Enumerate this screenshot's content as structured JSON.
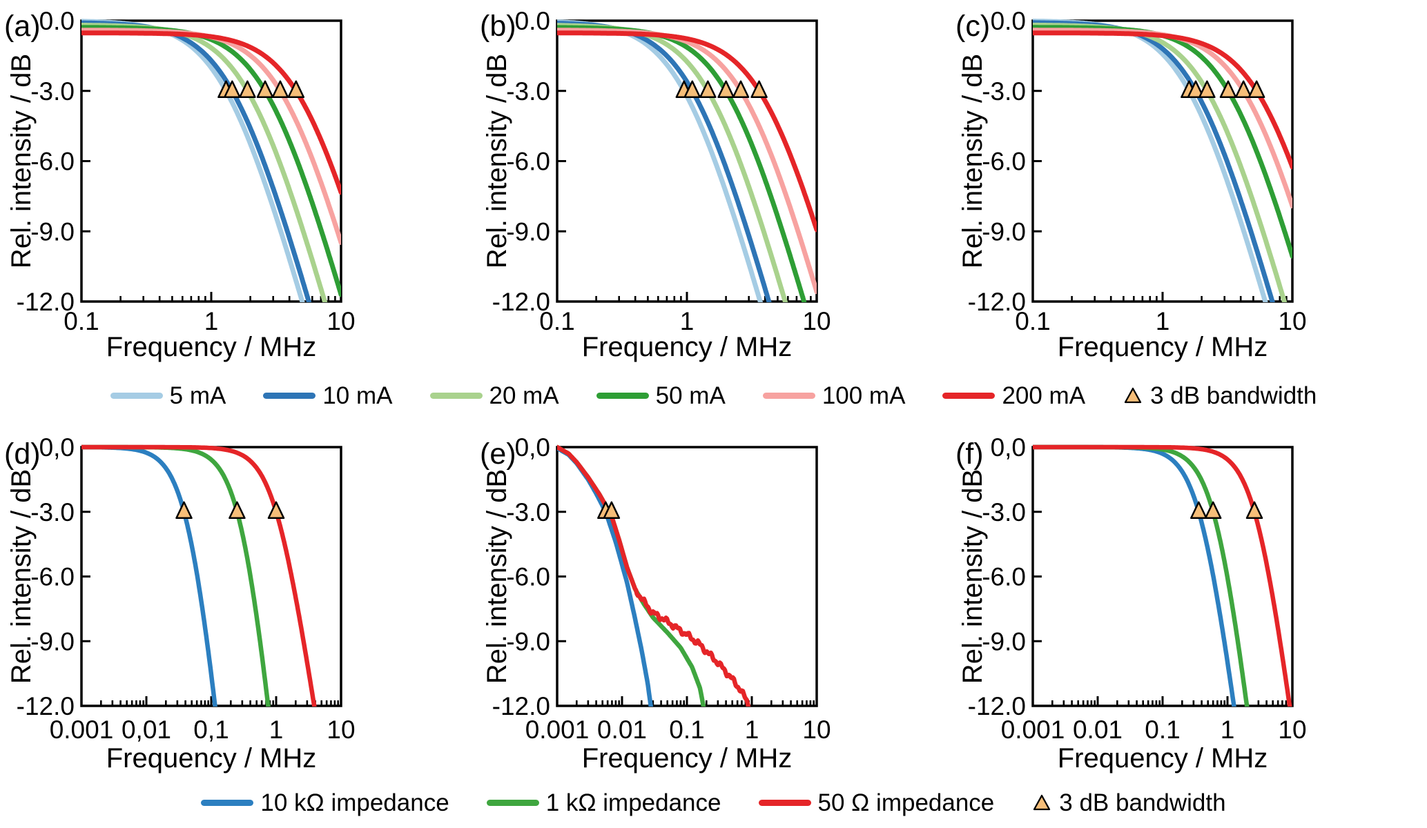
{
  "figure_title": "",
  "chart_data": {
    "type": "line",
    "x_unit": "MHz",
    "y_unit": "dB",
    "colors": {
      "c5mA": "#A5CCE4",
      "c10mA": "#2E75B6",
      "c20mA": "#A9D28D",
      "c50mA": "#2E9E35",
      "c100mA": "#F7A2A0",
      "c200mA": "#E52528",
      "imp10k": "#2C7FC0",
      "imp1k": "#3FA63F",
      "imp50": "#E52528"
    },
    "marker": {
      "label": "3 dB bandwidth",
      "fill": "#F6BE79",
      "stroke": "#000000"
    },
    "panels": [
      {
        "id": "a",
        "label": "(a)",
        "row": 0,
        "col": 0,
        "x_axis": {
          "scale": "log",
          "min": 0.1,
          "max": 10,
          "tick_values": [
            0.1,
            1,
            10
          ],
          "tick_labels": [
            "0.1",
            "1",
            "10"
          ],
          "title": "Frequency / MHz"
        },
        "y_axis": {
          "min": -12,
          "max": 0,
          "tick_values": [
            0,
            -3,
            -6,
            -9,
            -12
          ],
          "tick_labels": [
            "0.0",
            "-3.0",
            "-6.0",
            "-9.0",
            "-12.0"
          ],
          "title": "Rel. intensity / dB"
        },
        "series": [
          {
            "name": "5 mA",
            "color": "c5mA",
            "model": "lowpass",
            "f3dB_MHz": 1.3,
            "offset_dB": 0,
            "order": 1.0
          },
          {
            "name": "10 mA",
            "color": "c10mA",
            "model": "lowpass",
            "f3dB_MHz": 1.45,
            "offset_dB": -0.07,
            "order": 1.0
          },
          {
            "name": "20 mA",
            "color": "c20mA",
            "model": "lowpass",
            "f3dB_MHz": 1.9,
            "offset_dB": -0.18,
            "order": 1.0
          },
          {
            "name": "50 mA",
            "color": "c50mA",
            "model": "lowpass",
            "f3dB_MHz": 2.6,
            "offset_dB": -0.28,
            "order": 1.0
          },
          {
            "name": "100 mA",
            "color": "c100mA",
            "model": "lowpass",
            "f3dB_MHz": 3.4,
            "offset_dB": -0.4,
            "order": 1.0
          },
          {
            "name": "200 mA",
            "color": "c200mA",
            "model": "lowpass",
            "f3dB_MHz": 4.5,
            "offset_dB": -0.52,
            "order": 1.0
          }
        ],
        "bandwidth_markers_MHz": [
          1.3,
          1.45,
          1.9,
          2.6,
          3.4,
          4.5
        ]
      },
      {
        "id": "b",
        "label": "(b)",
        "row": 0,
        "col": 1,
        "x_axis": {
          "scale": "log",
          "min": 0.1,
          "max": 10,
          "tick_values": [
            0.1,
            1,
            10
          ],
          "tick_labels": [
            "0.1",
            "1",
            "10"
          ],
          "title": "Frequency / MHz"
        },
        "y_axis": {
          "min": -12,
          "max": 0,
          "tick_values": [
            0,
            -3,
            -6,
            -9,
            -12
          ],
          "tick_labels": [
            "0.0",
            "-3.0",
            "-6.0",
            "-9.0",
            "-12.0"
          ],
          "title": "Rel. intensity / dB"
        },
        "series": [
          {
            "name": "5 mA",
            "color": "c5mA",
            "model": "lowpass",
            "f3dB_MHz": 0.95,
            "offset_dB": 0,
            "order": 1.0
          },
          {
            "name": "10 mA",
            "color": "c10mA",
            "model": "lowpass",
            "f3dB_MHz": 1.1,
            "offset_dB": -0.07,
            "order": 1.0
          },
          {
            "name": "20 mA",
            "color": "c20mA",
            "model": "lowpass",
            "f3dB_MHz": 1.45,
            "offset_dB": -0.18,
            "order": 1.0
          },
          {
            "name": "50 mA",
            "color": "c50mA",
            "model": "lowpass",
            "f3dB_MHz": 2.0,
            "offset_dB": -0.28,
            "order": 1.0
          },
          {
            "name": "100 mA",
            "color": "c100mA",
            "model": "lowpass",
            "f3dB_MHz": 2.6,
            "offset_dB": -0.4,
            "order": 1.0
          },
          {
            "name": "200 mA",
            "color": "c200mA",
            "model": "lowpass",
            "f3dB_MHz": 3.6,
            "offset_dB": -0.52,
            "order": 1.0
          }
        ],
        "bandwidth_markers_MHz": [
          0.95,
          1.1,
          1.45,
          2.0,
          2.6,
          3.6
        ]
      },
      {
        "id": "c",
        "label": "(c)",
        "row": 0,
        "col": 2,
        "x_axis": {
          "scale": "log",
          "min": 0.1,
          "max": 10,
          "tick_values": [
            0.1,
            1,
            10
          ],
          "tick_labels": [
            "0.1",
            "1",
            "10"
          ],
          "title": "Frequency / MHz"
        },
        "y_axis": {
          "min": -12,
          "max": 0,
          "tick_values": [
            0,
            -3,
            -6,
            -9,
            -12
          ],
          "tick_labels": [
            "0.0",
            "-3.0",
            "-6.0",
            "-9.0",
            "-12.0"
          ],
          "title": "Rel. intensity / dB"
        },
        "series": [
          {
            "name": "5 mA",
            "color": "c5mA",
            "model": "lowpass",
            "f3dB_MHz": 1.6,
            "offset_dB": 0,
            "order": 1.0
          },
          {
            "name": "10 mA",
            "color": "c10mA",
            "model": "lowpass",
            "f3dB_MHz": 1.8,
            "offset_dB": -0.07,
            "order": 1.0
          },
          {
            "name": "20 mA",
            "color": "c20mA",
            "model": "lowpass",
            "f3dB_MHz": 2.2,
            "offset_dB": -0.18,
            "order": 1.0
          },
          {
            "name": "50 mA",
            "color": "c50mA",
            "model": "lowpass",
            "f3dB_MHz": 3.2,
            "offset_dB": -0.28,
            "order": 1.0
          },
          {
            "name": "100 mA",
            "color": "c100mA",
            "model": "lowpass",
            "f3dB_MHz": 4.2,
            "offset_dB": -0.4,
            "order": 1.0
          },
          {
            "name": "200 mA",
            "color": "c200mA",
            "model": "lowpass",
            "f3dB_MHz": 5.3,
            "offset_dB": -0.52,
            "order": 1.0
          }
        ],
        "bandwidth_markers_MHz": [
          1.6,
          1.8,
          2.2,
          3.2,
          4.2,
          5.3
        ]
      },
      {
        "id": "d",
        "label": "(d)",
        "row": 1,
        "col": 0,
        "x_axis": {
          "scale": "log",
          "min": 0.001,
          "max": 10,
          "tick_values": [
            0.001,
            0.01,
            0.1,
            1,
            10
          ],
          "tick_labels": [
            "0.001",
            "0,01",
            "0,1",
            "1",
            "10"
          ],
          "title": "Frequency / MHz"
        },
        "y_axis": {
          "min": -12,
          "max": 0,
          "tick_values": [
            0,
            -3,
            -6,
            -9,
            -12
          ],
          "tick_labels": [
            "0,0",
            "-3.0",
            "-6.0",
            "-9.0",
            "-12.0"
          ],
          "title": "Rel. intensity / dB"
        },
        "series": [
          {
            "name": "10 kΩ impedance",
            "color": "imp10k",
            "model": "lowpass",
            "f3dB_MHz": 0.038,
            "offset_dB": 0,
            "order": 1.5
          },
          {
            "name": "1 kΩ impedance",
            "color": "imp1k",
            "model": "lowpass",
            "f3dB_MHz": 0.25,
            "offset_dB": 0,
            "order": 1.5
          },
          {
            "name": "50 Ω impedance",
            "color": "imp50",
            "model": "lowpass",
            "f3dB_MHz": 1.0,
            "offset_dB": 0,
            "order": 1.0
          }
        ],
        "bandwidth_markers_MHz": [
          0.038,
          0.25,
          1.0
        ]
      },
      {
        "id": "e",
        "label": "(e)",
        "row": 1,
        "col": 1,
        "x_axis": {
          "scale": "log",
          "min": 0.001,
          "max": 10,
          "tick_values": [
            0.001,
            0.01,
            0.1,
            1,
            10
          ],
          "tick_labels": [
            "0.001",
            "0.01",
            "0.1",
            "1",
            "10"
          ],
          "title": "Frequency / MHz"
        },
        "y_axis": {
          "min": -12,
          "max": 0,
          "tick_values": [
            0,
            -3,
            -6,
            -9,
            -12
          ],
          "tick_labels": [
            "0,0",
            "-3.0",
            "-6.0",
            "-9.0",
            "-12.0"
          ],
          "title": "Rel. intensity / dB"
        },
        "series": [
          {
            "name": "10 kΩ impedance",
            "color": "imp10k",
            "model": "points",
            "points_MHz_dB": [
              [
                0.001,
                -0.05
              ],
              [
                0.0015,
                -0.35
              ],
              [
                0.002,
                -0.75
              ],
              [
                0.003,
                -1.5
              ],
              [
                0.004,
                -2.15
              ],
              [
                0.0056,
                -3.0
              ],
              [
                0.008,
                -4.4
              ],
              [
                0.012,
                -6.3
              ],
              [
                0.016,
                -8.0
              ],
              [
                0.02,
                -9.4
              ],
              [
                0.025,
                -11.0
              ],
              [
                0.0295,
                -12.6
              ]
            ]
          },
          {
            "name": "1 kΩ impedance",
            "color": "imp1k",
            "model": "points",
            "points_MHz_dB": [
              [
                0.001,
                0
              ],
              [
                0.0015,
                -0.3
              ],
              [
                0.002,
                -0.7
              ],
              [
                0.003,
                -1.4
              ],
              [
                0.0045,
                -2.2
              ],
              [
                0.0069,
                -3.2
              ],
              [
                0.009,
                -4.3
              ],
              [
                0.012,
                -5.6
              ],
              [
                0.016,
                -6.6
              ],
              [
                0.022,
                -7.3
              ],
              [
                0.03,
                -7.9
              ],
              [
                0.05,
                -8.6
              ],
              [
                0.08,
                -9.3
              ],
              [
                0.12,
                -10.2
              ],
              [
                0.16,
                -11.2
              ],
              [
                0.195,
                -12.6
              ]
            ]
          },
          {
            "name": "50 Ω impedance",
            "color": "imp50",
            "model": "points",
            "noise": true,
            "points_MHz_dB": [
              [
                0.001,
                0
              ],
              [
                0.0015,
                -0.3
              ],
              [
                0.002,
                -0.7
              ],
              [
                0.003,
                -1.4
              ],
              [
                0.0045,
                -2.2
              ],
              [
                0.0069,
                -3.2
              ],
              [
                0.009,
                -4.3
              ],
              [
                0.012,
                -5.6
              ],
              [
                0.016,
                -6.6
              ],
              [
                0.022,
                -7.2
              ],
              [
                0.03,
                -7.7
              ],
              [
                0.045,
                -8.0
              ],
              [
                0.07,
                -8.4
              ],
              [
                0.1,
                -8.7
              ],
              [
                0.15,
                -9.1
              ],
              [
                0.22,
                -9.6
              ],
              [
                0.3,
                -10.0
              ],
              [
                0.45,
                -10.6
              ],
              [
                0.65,
                -11.2
              ],
              [
                0.85,
                -11.8
              ],
              [
                1.05,
                -12.6
              ]
            ]
          }
        ],
        "bandwidth_markers_MHz": [
          0.0056,
          0.0069
        ]
      },
      {
        "id": "f",
        "label": "(f)",
        "row": 1,
        "col": 2,
        "x_axis": {
          "scale": "log",
          "min": 0.001,
          "max": 10,
          "tick_values": [
            0.001,
            0.01,
            0.1,
            1,
            10
          ],
          "tick_labels": [
            "0.001",
            "0.01",
            "0.1",
            "1",
            "10"
          ],
          "title": "Frequency / MHz"
        },
        "y_axis": {
          "min": -12,
          "max": 0,
          "tick_values": [
            0,
            -3,
            -6,
            -9,
            -12
          ],
          "tick_labels": [
            "0,0",
            "-3.0",
            "-6.0",
            "-9.0",
            "-12.0"
          ],
          "title": "Rel. intensity / dB"
        },
        "series": [
          {
            "name": "10 kΩ impedance",
            "color": "imp10k",
            "model": "lowpass",
            "f3dB_MHz": 0.36,
            "offset_dB": 0,
            "order": 1.15
          },
          {
            "name": "1 kΩ impedance",
            "color": "imp1k",
            "model": "lowpass",
            "f3dB_MHz": 0.6,
            "offset_dB": 0,
            "order": 1.25
          },
          {
            "name": "50 Ω impedance",
            "color": "imp50",
            "model": "lowpass",
            "f3dB_MHz": 2.6,
            "offset_dB": 0,
            "order": 1.15
          }
        ],
        "bandwidth_markers_MHz": [
          0.36,
          0.6,
          2.6
        ]
      }
    ],
    "legends": {
      "currents": {
        "items": [
          {
            "type": "line",
            "color": "c5mA",
            "label": "5 mA"
          },
          {
            "type": "line",
            "color": "c10mA",
            "label": "10 mA"
          },
          {
            "type": "line",
            "color": "c20mA",
            "label": "20 mA"
          },
          {
            "type": "line",
            "color": "c50mA",
            "label": "50 mA"
          },
          {
            "type": "line",
            "color": "c100mA",
            "label": "100 mA"
          },
          {
            "type": "line",
            "color": "c200mA",
            "label": "200 mA"
          },
          {
            "type": "triangle",
            "label": "3 dB bandwidth"
          }
        ]
      },
      "impedances": {
        "items": [
          {
            "type": "line",
            "color": "imp10k",
            "label": "10 kΩ impedance"
          },
          {
            "type": "line",
            "color": "imp1k",
            "label": "1 kΩ impedance"
          },
          {
            "type": "line",
            "color": "imp50",
            "label": "50 Ω impedance"
          },
          {
            "type": "triangle",
            "label": "3 dB bandwidth"
          }
        ]
      }
    }
  }
}
